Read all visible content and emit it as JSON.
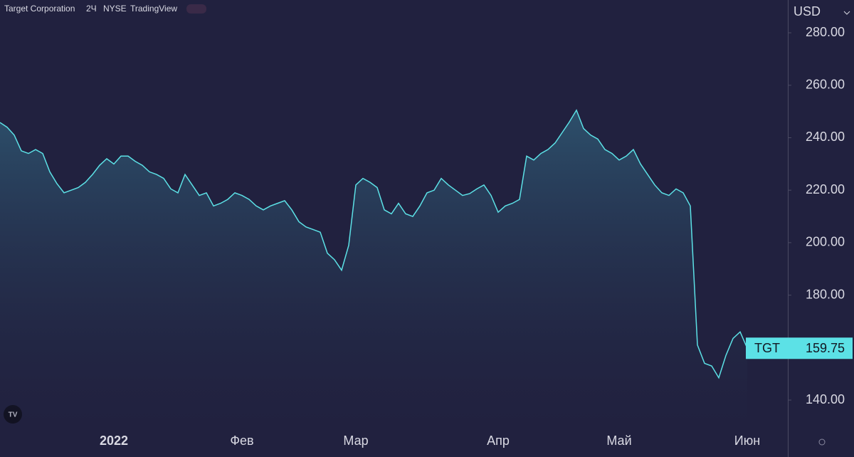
{
  "header": {
    "symbol": "Target Corporation",
    "interval": "2Ч",
    "exchange": "NYSE",
    "source": "TradingView"
  },
  "chart_data": {
    "type": "area",
    "y_unit": "USD",
    "categories": [
      null,
      null,
      null,
      null,
      null,
      null,
      null,
      null,
      null,
      null,
      null,
      null,
      null,
      null,
      null,
      null,
      "2022",
      null,
      null,
      null,
      null,
      null,
      null,
      null,
      null,
      null,
      null,
      null,
      null,
      null,
      null,
      null,
      null,
      null,
      "Фев",
      null,
      null,
      null,
      null,
      null,
      null,
      null,
      null,
      null,
      null,
      null,
      null,
      null,
      null,
      null,
      "Мар",
      null,
      null,
      null,
      null,
      null,
      null,
      null,
      null,
      null,
      null,
      null,
      null,
      null,
      null,
      null,
      null,
      null,
      null,
      null,
      "Апр",
      null,
      null,
      null,
      null,
      null,
      null,
      null,
      null,
      null,
      null,
      null,
      null,
      null,
      null,
      null,
      null,
      "Май",
      null,
      null,
      null,
      null,
      null,
      null,
      null,
      null,
      null,
      null,
      null,
      null,
      null,
      null,
      null,
      null,
      null,
      "Июн"
    ],
    "series": [
      {
        "name": "TGT",
        "color": "#5ce1e6",
        "values": [
          245.8,
          244,
          241,
          235,
          234,
          235.5,
          234,
          227,
          222.5,
          219,
          220,
          221,
          223,
          226,
          229.5,
          232,
          230,
          233,
          233,
          231,
          229.5,
          227,
          226,
          224.5,
          220.5,
          219,
          226,
          222,
          218,
          219,
          214,
          215,
          216.5,
          219,
          218,
          216.5,
          214,
          212.5,
          214,
          215,
          216,
          212.5,
          208,
          206,
          205,
          204,
          196,
          193.5,
          189.5,
          199,
          222,
          224.5,
          223,
          221,
          212.5,
          211,
          215,
          211,
          210,
          214,
          219,
          220,
          224.5,
          222,
          220,
          218,
          218.7,
          220.5,
          222,
          218,
          211.6,
          214,
          215,
          216.5,
          233,
          231.5,
          234,
          235.5,
          238,
          242,
          246,
          250.5,
          243.5,
          241,
          239.5,
          235.5,
          234,
          231.5,
          233,
          235.5,
          230,
          226,
          222,
          219,
          218,
          220.5,
          219,
          214,
          161,
          154,
          153,
          148.5,
          157,
          163.5,
          166,
          159.75
        ]
      }
    ],
    "ylim": [
      129.7,
      292.5
    ],
    "yticks": [
      {
        "value": 140,
        "label": "140.00"
      },
      {
        "value": 160,
        "label": "160.00"
      },
      {
        "value": 180,
        "label": "180.00"
      },
      {
        "value": 200,
        "label": "200.00"
      },
      {
        "value": 220,
        "label": "220.00"
      },
      {
        "value": 240,
        "label": "240.00"
      },
      {
        "value": 260,
        "label": "260.00"
      },
      {
        "value": 280,
        "label": "280.00"
      }
    ]
  }
}
